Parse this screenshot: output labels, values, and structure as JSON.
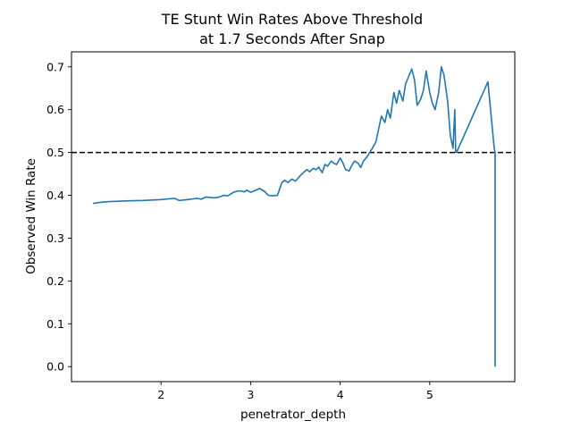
{
  "chart_data": {
    "type": "line",
    "title_line1": "TE Stunt Win Rates Above Threshold",
    "title_line2": "at 1.7 Seconds After Snap",
    "xlabel": "penetrator_depth",
    "ylabel": "Observed Win Rate",
    "xlim": [
      1.0,
      5.95
    ],
    "ylim": [
      -0.035,
      0.735
    ],
    "x_ticks": [
      2,
      3,
      4,
      5
    ],
    "y_ticks": [
      0.0,
      0.1,
      0.2,
      0.3,
      0.4,
      0.5,
      0.6,
      0.7
    ],
    "x_tick_labels": [
      "2",
      "3",
      "4",
      "5"
    ],
    "y_tick_labels": [
      "0.0",
      "0.1",
      "0.2",
      "0.3",
      "0.4",
      "0.5",
      "0.6",
      "0.7"
    ],
    "threshold": {
      "value": 0.5,
      "style": "dashed",
      "color": "#000000"
    },
    "grid": false,
    "series": [
      {
        "color": "#1f77b4",
        "x": [
          1.24,
          1.3,
          1.4,
          1.6,
          1.8,
          2.0,
          2.1,
          2.15,
          2.2,
          2.3,
          2.4,
          2.45,
          2.5,
          2.55,
          2.6,
          2.65,
          2.7,
          2.75,
          2.8,
          2.85,
          2.9,
          2.93,
          2.96,
          3.0,
          3.05,
          3.1,
          3.15,
          3.2,
          3.25,
          3.3,
          3.35,
          3.38,
          3.42,
          3.46,
          3.5,
          3.55,
          3.6,
          3.63,
          3.66,
          3.7,
          3.73,
          3.76,
          3.8,
          3.83,
          3.86,
          3.9,
          3.93,
          3.96,
          4.0,
          4.03,
          4.06,
          4.1,
          4.13,
          4.16,
          4.2,
          4.23,
          4.26,
          4.3,
          4.33,
          4.36,
          4.4,
          4.43,
          4.46,
          4.5,
          4.53,
          4.56,
          4.6,
          4.63,
          4.66,
          4.7,
          4.73,
          4.76,
          4.8,
          4.83,
          4.86,
          4.9,
          4.93,
          4.96,
          5.0,
          5.03,
          5.06,
          5.1,
          5.13,
          5.16,
          5.2,
          5.23,
          5.26,
          5.28,
          5.29,
          5.3,
          5.31,
          5.65,
          5.72,
          5.73,
          5.73
        ],
        "values": [
          0.381,
          0.383,
          0.385,
          0.387,
          0.388,
          0.39,
          0.392,
          0.393,
          0.388,
          0.39,
          0.393,
          0.391,
          0.396,
          0.395,
          0.394,
          0.396,
          0.4,
          0.399,
          0.406,
          0.41,
          0.41,
          0.408,
          0.412,
          0.407,
          0.411,
          0.416,
          0.41,
          0.4,
          0.399,
          0.4,
          0.43,
          0.435,
          0.43,
          0.438,
          0.433,
          0.445,
          0.455,
          0.46,
          0.455,
          0.463,
          0.46,
          0.466,
          0.453,
          0.472,
          0.468,
          0.48,
          0.475,
          0.472,
          0.487,
          0.476,
          0.46,
          0.457,
          0.47,
          0.48,
          0.475,
          0.465,
          0.48,
          0.49,
          0.5,
          0.51,
          0.525,
          0.555,
          0.585,
          0.57,
          0.6,
          0.58,
          0.64,
          0.615,
          0.645,
          0.62,
          0.66,
          0.675,
          0.695,
          0.67,
          0.61,
          0.625,
          0.645,
          0.69,
          0.64,
          0.615,
          0.6,
          0.64,
          0.7,
          0.68,
          0.62,
          0.54,
          0.51,
          0.6,
          0.5,
          0.5,
          0.505,
          0.665,
          0.51,
          0.5,
          0.0
        ]
      }
    ]
  }
}
